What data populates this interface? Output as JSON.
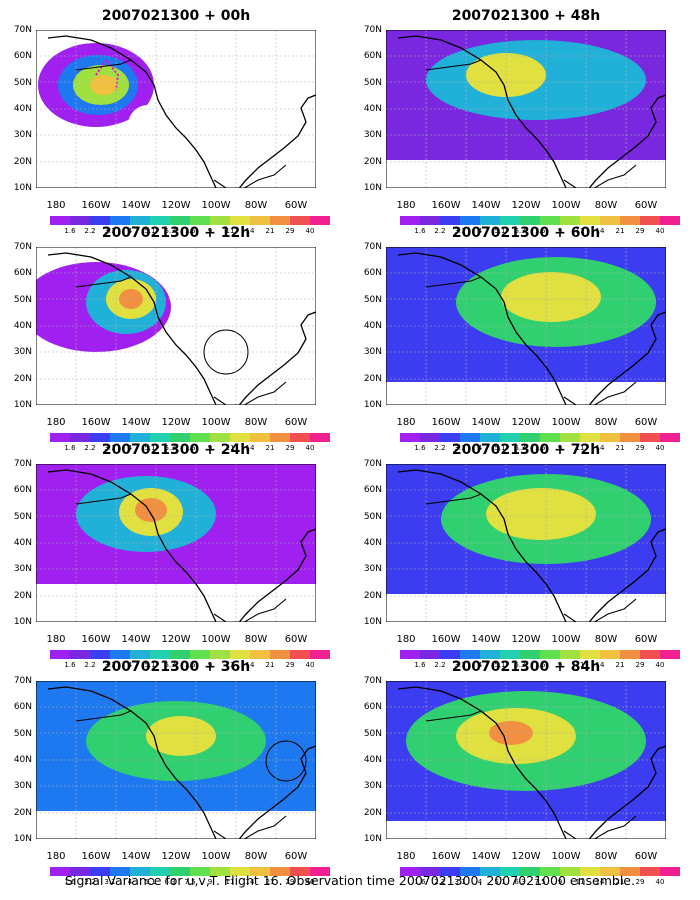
{
  "panels": [
    {
      "title": "2007021300 + 00h"
    },
    {
      "title": "2007021300 + 48h"
    },
    {
      "title": "2007021300 + 12h"
    },
    {
      "title": "2007021300 + 60h"
    },
    {
      "title": "2007021300 + 24h"
    },
    {
      "title": "2007021300 + 72h"
    },
    {
      "title": "2007021300 + 36h"
    },
    {
      "title": "2007021300 + 84h"
    }
  ],
  "lat_labels": [
    "70N",
    "60N",
    "50N",
    "40N",
    "30N",
    "20N",
    "10N"
  ],
  "lon_labels": [
    "180",
    "160W",
    "140W",
    "120W",
    "100W",
    "80W",
    "60W"
  ],
  "colorbar": {
    "levels": [
      "1.6",
      "2.2",
      "3.1",
      "4",
      "5.1",
      "6.3",
      "7.5",
      "9",
      "11",
      "14",
      "21",
      "29",
      "40"
    ],
    "colors": [
      "#a020f0",
      "#7a28e0",
      "#3c3cf0",
      "#1e78f0",
      "#20b0d8",
      "#20d0b0",
      "#30d070",
      "#60e050",
      "#a0e040",
      "#e0e040",
      "#f0c040",
      "#f09040",
      "#f05050",
      "#f02090"
    ]
  },
  "caption": "Signal Variance for u,v,T. Flight 16. Observation time 2007021300. 2007021000 ensemble."
}
